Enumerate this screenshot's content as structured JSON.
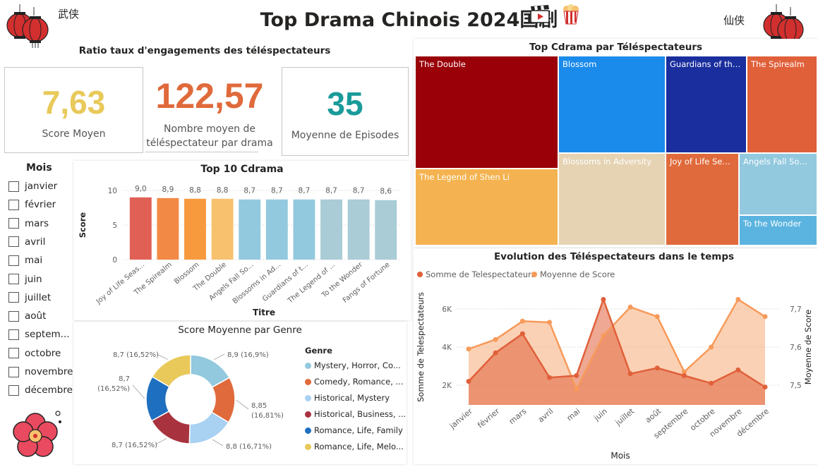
{
  "header": {
    "title": "Top Drama Chinois 2024国剧",
    "left_cn": "武侠",
    "right_cn": "仙侠",
    "clapper_icon": "clapperboard-icon",
    "popcorn_icon": "popcorn-icon",
    "lantern_icon": "chinese-lantern-icon"
  },
  "engagement": {
    "title": "Ratio taux d'engagements des téléspectateurs",
    "score": {
      "value": "7,63",
      "label": "Score Moyen",
      "color": "#E8C95A"
    },
    "viewers": {
      "value": "122,57",
      "label1": "Nombre moyen de",
      "label2": "téléspectateur par drama",
      "color": "#E06A3B"
    },
    "episodes": {
      "value": "35",
      "label": "Moyenne de Episodes",
      "color": "#1A9A9A"
    }
  },
  "months": {
    "title": "Mois",
    "items": [
      "janvier",
      "février",
      "mars",
      "avril",
      "mai",
      "juin",
      "juillet",
      "août",
      "septem...",
      "octobre",
      "novembre",
      "décembre"
    ]
  },
  "chart_data": [
    {
      "type": "bar",
      "title": "Top 10 Cdrama",
      "xlabel": "Titre",
      "ylabel": "Score",
      "ylim": [
        0,
        10
      ],
      "yticks": [
        "0",
        "5",
        "10"
      ],
      "categories": [
        "Joy of Life Seas...",
        "The Spirealm",
        "Blossom",
        "The Double",
        "Angels Fall So...",
        "Blossoms in Ad...",
        "Guardians of t...",
        "The Legend of ...",
        "To the Wonder",
        "Fangs of Fortune"
      ],
      "values": [
        9.0,
        8.9,
        8.8,
        8.8,
        8.7,
        8.7,
        8.7,
        8.7,
        8.7,
        8.6
      ],
      "labels": [
        "9,0",
        "8,9",
        "8,8",
        "8,8",
        "8,7",
        "8,7",
        "8,7",
        "8,7",
        "8,7",
        "8,6"
      ],
      "colors": [
        "#E06055",
        "#F28A45",
        "#F79A3E",
        "#F7C16E",
        "#92C9DF",
        "#92C9DF",
        "#92C9DF",
        "#A9CCD6",
        "#A9CCD6",
        "#A9CCD6"
      ]
    },
    {
      "type": "pie",
      "title": "Score Moyenne par Genre",
      "legend_title": "Genre",
      "slices": [
        {
          "name": "Mystery, Horror, Co...",
          "value": 8.9,
          "label": "8,9 (16,9%)",
          "color": "#92C9DF"
        },
        {
          "name": "Comedy, Romance, ...",
          "value": 8.85,
          "label": "8,85 (16,81%)",
          "color": "#E06A3B"
        },
        {
          "name": "Historical, Mystery",
          "value": 8.8,
          "label": "8,8 (16,71%)",
          "color": "#A9D1F2"
        },
        {
          "name": "Historical, Business, ...",
          "value": 8.7,
          "label": "8,7 (16,52%)",
          "color": "#A8323E"
        },
        {
          "name": "Romance, Life, Family",
          "value": 8.7,
          "label": "8,7 (16,52%)",
          "color": "#1F6FC0"
        },
        {
          "name": "Romance, Life, Melo...",
          "value": 8.7,
          "label": "8,7 (16,52%)",
          "color": "#E8C95A"
        }
      ]
    },
    {
      "type": "treemap",
      "title": "Top Cdrama par Téléspectateurs",
      "items": [
        {
          "name": "The Double",
          "color": "#9A0008"
        },
        {
          "name": "The Legend of Shen Li",
          "color": "#F4B350"
        },
        {
          "name": "Blossom",
          "color": "#1B8BEB"
        },
        {
          "name": "Blossoms in Adversity",
          "color": "#E5D3B3"
        },
        {
          "name": "Guardians of the ...",
          "color": "#1A2E9E"
        },
        {
          "name": "Joy of Life Seas...",
          "color": "#E06A3B"
        },
        {
          "name": "The Spirealm",
          "color": "#E0603A"
        },
        {
          "name": "Angels Fall Somet...",
          "color": "#92C9DF"
        },
        {
          "name": "To the Wonder",
          "color": "#5BB4E0"
        }
      ]
    },
    {
      "type": "area",
      "title": "Evolution des Téléspectateurs dans le temps",
      "xlabel": "Mois",
      "ylabel_left": "Somme de Telespectateurs",
      "ylabel_right": "Moyenne de Score",
      "legend_position": "top-left",
      "left_ticks": [
        "2K",
        "4K",
        "6K"
      ],
      "right_ticks": [
        "7,5",
        "7,6",
        "7,7"
      ],
      "categories": [
        "janvier",
        "février",
        "mars",
        "avril",
        "mai",
        "juin",
        "juillet",
        "août",
        "septembre",
        "octobre",
        "novembre",
        "décembre"
      ],
      "series": [
        {
          "name": "Somme de Telespectateurs",
          "axis": "left",
          "color": "#E0603A",
          "values": [
            2200,
            3700,
            4700,
            2400,
            2500,
            6500,
            2600,
            2900,
            2500,
            2100,
            2800,
            1900
          ]
        },
        {
          "name": "Moyenne de Score",
          "axis": "right",
          "color": "#F79A5A",
          "values": [
            7.595,
            7.62,
            7.668,
            7.665,
            7.49,
            7.63,
            7.705,
            7.68,
            7.535,
            7.6,
            7.725,
            7.68
          ]
        }
      ]
    }
  ]
}
